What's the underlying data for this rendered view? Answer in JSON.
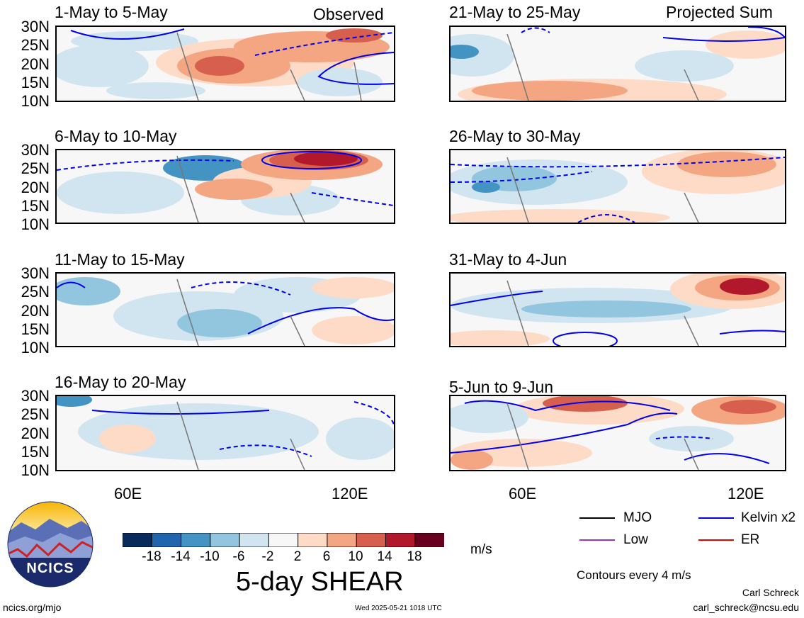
{
  "header": {
    "observed_label": "Observed",
    "projected_label": "Projected Sum"
  },
  "panels": [
    {
      "title": "1-May to 5-May",
      "column": "left"
    },
    {
      "title": "6-May to 10-May",
      "column": "left"
    },
    {
      "title": "11-May to 15-May",
      "column": "left"
    },
    {
      "title": "16-May to 20-May",
      "column": "left"
    },
    {
      "title": "21-May to 25-May",
      "column": "right"
    },
    {
      "title": "26-May to 30-May",
      "column": "right"
    },
    {
      "title": "31-May to 4-Jun",
      "column": "right"
    },
    {
      "title": "5-Jun to 9-Jun",
      "column": "right"
    }
  ],
  "axes": {
    "lat_ticks": [
      "30N",
      "25N",
      "20N",
      "15N",
      "10N"
    ],
    "lon_ticks": [
      "60E",
      "120E"
    ]
  },
  "colorbar": {
    "ticks": [
      "-18",
      "-14",
      "-10",
      "-6",
      "-2",
      "2",
      "6",
      "10",
      "14",
      "18"
    ],
    "colors": [
      "#0b2a5c",
      "#2166ac",
      "#4393c3",
      "#92c5de",
      "#d1e5f0",
      "#f7f7f7",
      "#fddbc7",
      "#f4a582",
      "#d6604d",
      "#b2182b",
      "#67001f"
    ],
    "unit": "m/s",
    "title": "5-day SHEAR"
  },
  "legend": {
    "items": [
      {
        "label": "MJO",
        "color": "#000000"
      },
      {
        "label": "Kelvin x2",
        "color": "#0000ee"
      },
      {
        "label": "Low",
        "color": "#9933cc"
      },
      {
        "label": "ER",
        "color": "#ee0000"
      }
    ],
    "contour_note": "Contours every 4 m/s"
  },
  "footer": {
    "logo_text": "NCICS",
    "url": "ncics.org/mjo",
    "timestamp": "Wed 2025-05-21 1018 UTC",
    "author": "Carl Schreck",
    "email": "carl_schreck@ncsu.edu"
  }
}
